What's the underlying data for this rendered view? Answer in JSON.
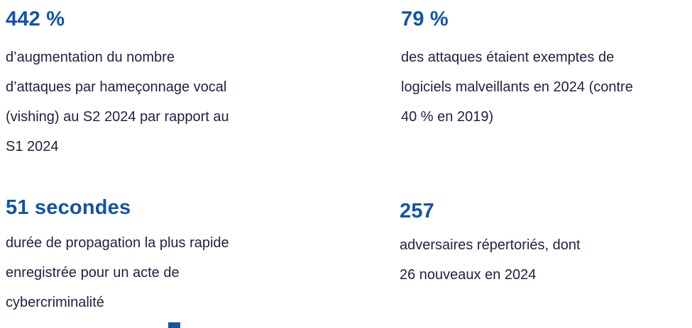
{
  "colors": {
    "accent": "#1353a8",
    "body_text": "#212145",
    "background": "#ffffff"
  },
  "stats": [
    {
      "id": "vishing",
      "value": "442 %",
      "lines": [
        "d’augmentation du nombre",
        "d’attaques par hameçonnage vocal",
        "(vishing) au S2 2024 par rapport au",
        "S1 2024"
      ]
    },
    {
      "id": "malware-free",
      "value": "79 %",
      "lines": [
        "des attaques étaient exemptes de",
        "logiciels malveillants en 2024 (contre",
        "40 % en 2019)"
      ]
    },
    {
      "id": "breakout-time",
      "value": "51 secondes",
      "lines": [
        "durée de propagation la plus rapide",
        "enregistrée pour un acte de",
        "cybercriminalité"
      ]
    },
    {
      "id": "adversaries",
      "value": "257",
      "lines": [
        "adversaires répertoriés, dont",
        "26 nouveaux en 2024"
      ]
    }
  ]
}
